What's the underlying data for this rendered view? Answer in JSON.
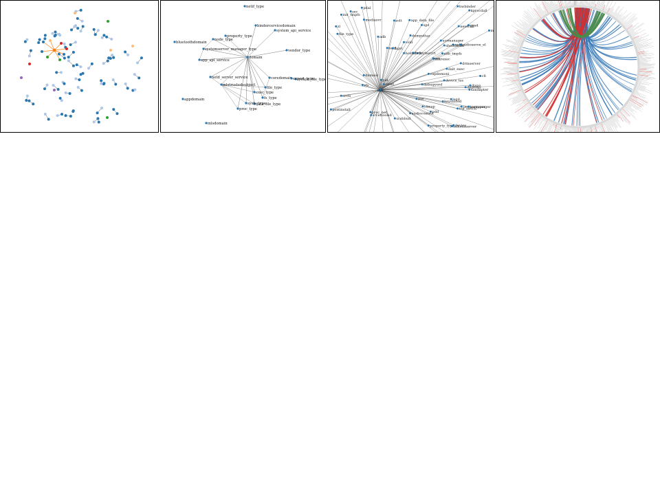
{
  "colors": {
    "node_dark": "#2a77b0",
    "node_light": "#aec7e8",
    "node_orange": "#ff7f0e",
    "node_peach": "#ffbb78",
    "node_green": "#2ca02c",
    "node_purple": "#9467bd",
    "node_red": "#d62728",
    "edge_light": "#9a9a9a",
    "chord_blue": "#3a7ab8",
    "chord_red": "#d03030",
    "ring_gray": "#bdbdbd"
  },
  "panel2": {
    "labels": [
      "netif_type",
      "bindercervicedomain",
      "system_api_service",
      "property_type",
      "node_type",
      "systemserver_manager_type",
      "domain",
      "vendor_type",
      "bluetoothdomain",
      "app_api_service",
      "netd_server_service",
      "coredomain",
      "system_file_type",
      "mlstrustedsubject",
      "file_type",
      "exec_type",
      "fs_type",
      "data_file_type",
      "sysfs_type",
      "proc_type",
      "appdomain",
      "mlsdomain",
      "export_type"
    ]
  },
  "panel3": {
    "hub_label": "init",
    "labels": [
      "dalt_exec",
      "adb_tmpfs",
      "property_type",
      "device",
      "device_tss",
      "neverall",
      "srcfs",
      "mkrexec",
      "fstrbsrcrt",
      "app_data_file",
      "init_tmpfs",
      "netd",
      "rfs",
      "sec",
      "postinstall",
      "kprocdall",
      "netd",
      "scsbbud",
      "hwbinder",
      "mdst",
      "vrs",
      "zl",
      "lsgd",
      "proc_net",
      "audioseroe_el",
      "vold",
      "srcidtoolsd",
      "sandapter",
      "audiocontrol",
      "servicemanager",
      "sdhedsserver",
      "ucrmanager",
      "shellsmuar",
      "gpsd",
      "dnproxy",
      "drmserver",
      "tcp_strtch",
      "file_type",
      "pdal",
      "idmap",
      "pdd",
      "sarspper",
      "dnmaid",
      "hostid",
      "init",
      "fsck",
      "dumpsttaz",
      "keystored",
      "adb",
      "cupdemoni",
      "cfi",
      "pid",
      "debugyord",
      "sgd",
      "mediasvr",
      "cntxt",
      "dispo",
      "fsgst",
      "zolt"
    ]
  }
}
